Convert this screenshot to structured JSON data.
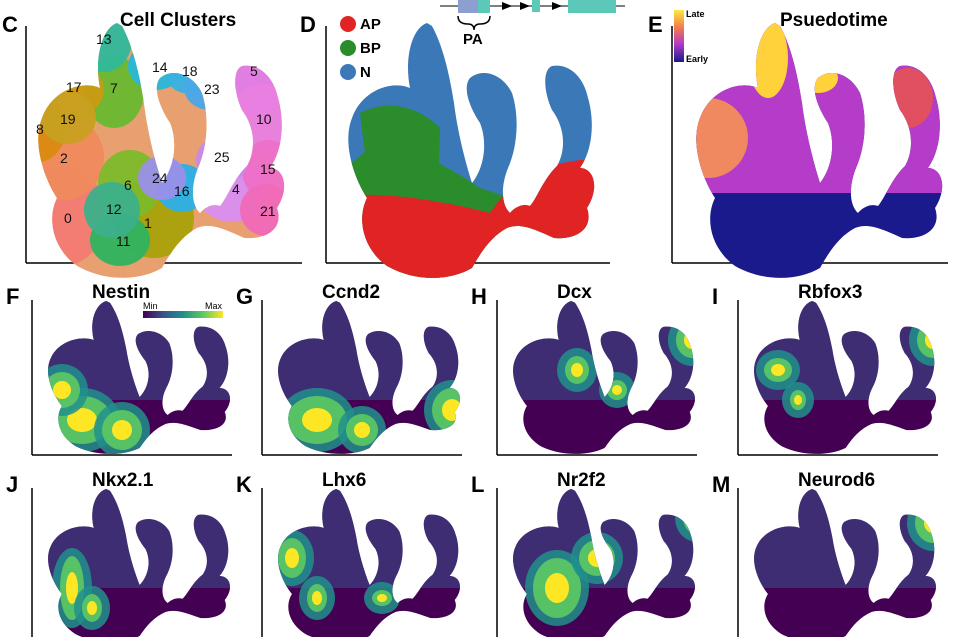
{
  "panels": {
    "C": {
      "letter": "C",
      "title": "Cell Clusters"
    },
    "D": {
      "letter": "D",
      "title": ""
    },
    "E": {
      "letter": "E",
      "title": "Psuedotime"
    },
    "F": {
      "letter": "F",
      "title": "Nestin"
    },
    "G": {
      "letter": "G",
      "title": "Ccnd2"
    },
    "H": {
      "letter": "H",
      "title": "Dcx"
    },
    "I": {
      "letter": "I",
      "title": "Rbfox3"
    },
    "J": {
      "letter": "J",
      "title": "Nkx2.1"
    },
    "K": {
      "letter": "K",
      "title": "Lhx6"
    },
    "L": {
      "letter": "L",
      "title": "Nr2f2"
    },
    "M": {
      "letter": "M",
      "title": "Neurod6"
    }
  },
  "clusters": [
    "0",
    "1",
    "2",
    "4",
    "5",
    "6",
    "7",
    "8",
    "10",
    "11",
    "12",
    "13",
    "14",
    "15",
    "16",
    "17",
    "18",
    "19",
    "21",
    "23",
    "24",
    "25"
  ],
  "cluster_colors": {
    "0": "#f47b73",
    "1": "#a9a10a",
    "2": "#f08a5d",
    "4": "#d98ff0",
    "5": "#e07ce8",
    "6": "#7dbb2a",
    "7": "#69b830",
    "8": "#d98b10",
    "10": "#e880e0",
    "11": "#2fb35f",
    "12": "#3cb08a",
    "13": "#2fb89a",
    "14": "#28b7d6",
    "15": "#ee70c8",
    "16": "#2bb0e8",
    "17": "#c99a12",
    "18": "#36b2e0",
    "19": "#c8a020",
    "21": "#f06ab8",
    "23": "#4aa8e8",
    "24": "#9a8fe8",
    "25": "#c58ae8"
  },
  "cell_types": {
    "items": [
      {
        "label": "AP",
        "color": "#e02424"
      },
      {
        "label": "BP",
        "color": "#2a8c2a"
      },
      {
        "label": "N",
        "color": "#3a78b8"
      }
    ],
    "diagram_label": "PA"
  },
  "pseudotime": {
    "late_label": "Late",
    "early_label": "Early",
    "color_early": "#1a1a8c",
    "color_mid": "#b43cc8",
    "color_late": "#ffd23c"
  },
  "expression_scale": {
    "min_label": "Min",
    "max_label": "Max",
    "colors": [
      "#440154",
      "#3b528b",
      "#21908c",
      "#5dc963",
      "#fde725"
    ]
  }
}
